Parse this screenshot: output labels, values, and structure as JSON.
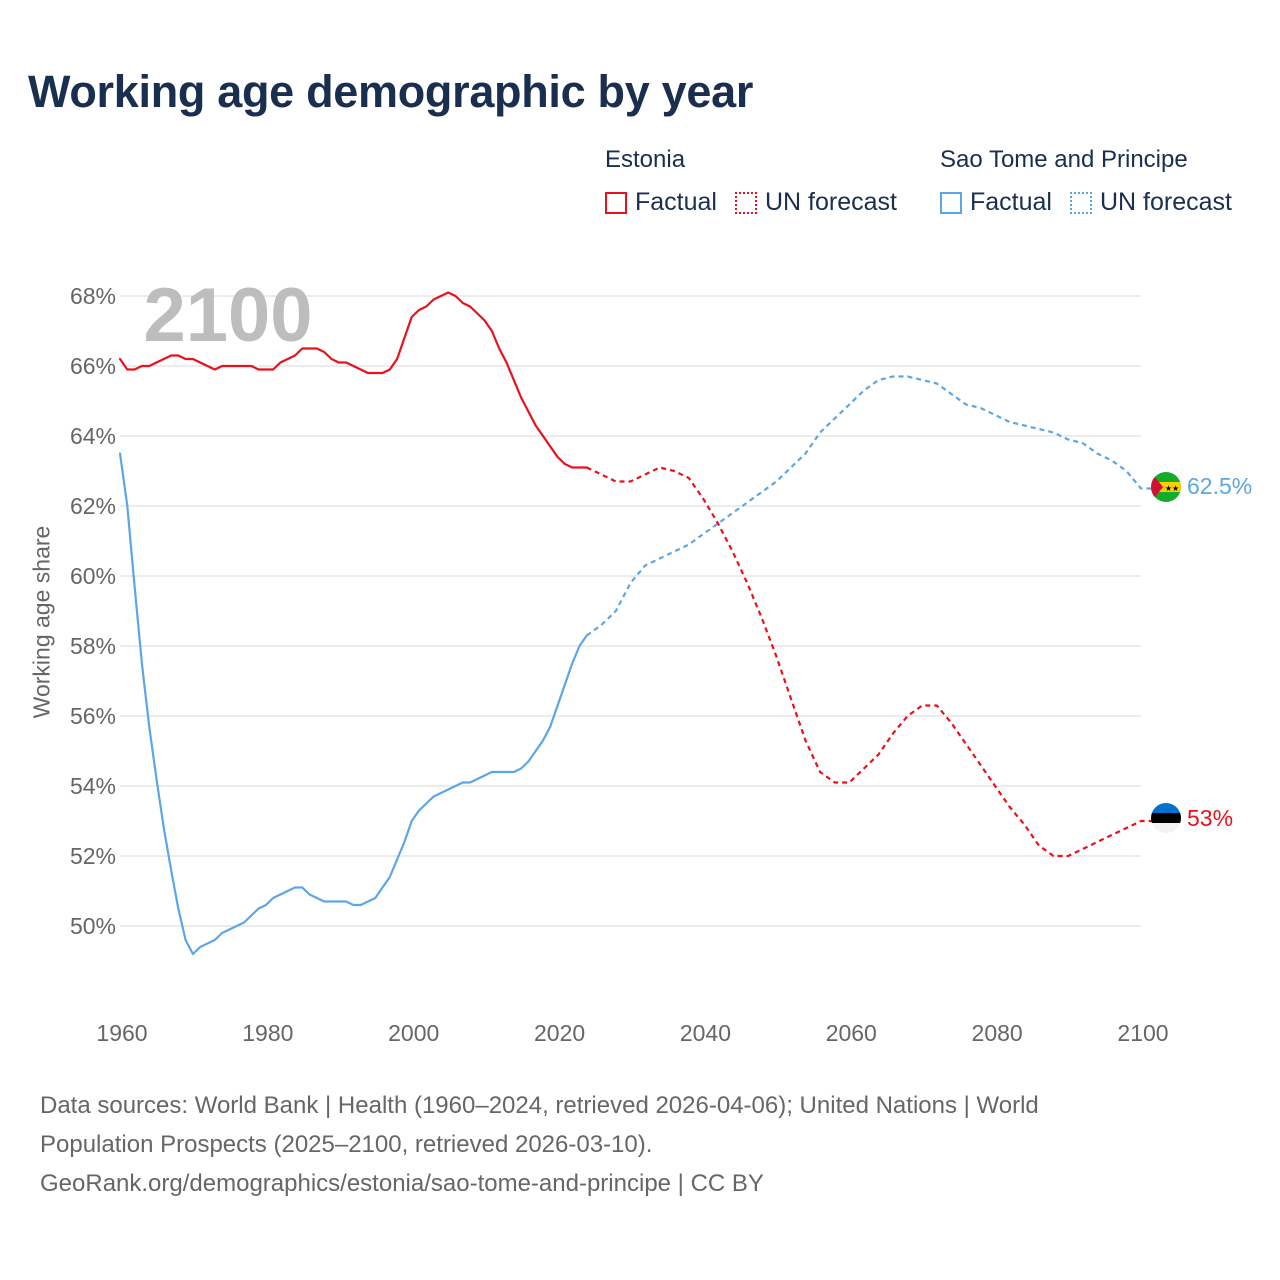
{
  "title": "Working age demographic by year",
  "legend": {
    "groups": [
      {
        "name": "Estonia",
        "factual_label": "Factual",
        "forecast_label": "UN forecast",
        "color": "#e8111c"
      },
      {
        "name": "Sao Tome and Principe",
        "factual_label": "Factual",
        "forecast_label": "UN forecast",
        "color": "#5da6e6"
      }
    ]
  },
  "chart_data": {
    "type": "line",
    "year_watermark": "2100",
    "ylabel": "Working age share",
    "xlim": [
      1960,
      2103
    ],
    "ylim": [
      48,
      69
    ],
    "x_ticks": [
      1960,
      1980,
      2000,
      2020,
      2040,
      2060,
      2080,
      2100
    ],
    "y_ticks": [
      50,
      52,
      54,
      56,
      58,
      60,
      62,
      64,
      66,
      68
    ],
    "y_tick_suffix": "%",
    "forecast_start_year": 2024,
    "series": [
      {
        "name": "Estonia",
        "color": "#e8111c",
        "end_label": "53%",
        "flag": "estonia-flag",
        "points": [
          [
            1960,
            66.2
          ],
          [
            1961,
            65.9
          ],
          [
            1962,
            65.9
          ],
          [
            1963,
            66.0
          ],
          [
            1964,
            66.0
          ],
          [
            1965,
            66.1
          ],
          [
            1966,
            66.2
          ],
          [
            1967,
            66.3
          ],
          [
            1968,
            66.3
          ],
          [
            1969,
            66.2
          ],
          [
            1970,
            66.2
          ],
          [
            1971,
            66.1
          ],
          [
            1972,
            66.0
          ],
          [
            1973,
            65.9
          ],
          [
            1974,
            66.0
          ],
          [
            1975,
            66.0
          ],
          [
            1976,
            66.0
          ],
          [
            1977,
            66.0
          ],
          [
            1978,
            66.0
          ],
          [
            1979,
            65.9
          ],
          [
            1980,
            65.9
          ],
          [
            1981,
            65.9
          ],
          [
            1982,
            66.1
          ],
          [
            1983,
            66.2
          ],
          [
            1984,
            66.3
          ],
          [
            1985,
            66.5
          ],
          [
            1986,
            66.5
          ],
          [
            1987,
            66.5
          ],
          [
            1988,
            66.4
          ],
          [
            1989,
            66.2
          ],
          [
            1990,
            66.1
          ],
          [
            1991,
            66.1
          ],
          [
            1992,
            66.0
          ],
          [
            1993,
            65.9
          ],
          [
            1994,
            65.8
          ],
          [
            1995,
            65.8
          ],
          [
            1996,
            65.8
          ],
          [
            1997,
            65.9
          ],
          [
            1998,
            66.2
          ],
          [
            1999,
            66.8
          ],
          [
            2000,
            67.4
          ],
          [
            2001,
            67.6
          ],
          [
            2002,
            67.7
          ],
          [
            2003,
            67.9
          ],
          [
            2004,
            68.0
          ],
          [
            2005,
            68.1
          ],
          [
            2006,
            68.0
          ],
          [
            2007,
            67.8
          ],
          [
            2008,
            67.7
          ],
          [
            2009,
            67.5
          ],
          [
            2010,
            67.3
          ],
          [
            2011,
            67.0
          ],
          [
            2012,
            66.5
          ],
          [
            2013,
            66.1
          ],
          [
            2014,
            65.6
          ],
          [
            2015,
            65.1
          ],
          [
            2016,
            64.7
          ],
          [
            2017,
            64.3
          ],
          [
            2018,
            64.0
          ],
          [
            2019,
            63.7
          ],
          [
            2020,
            63.4
          ],
          [
            2021,
            63.2
          ],
          [
            2022,
            63.1
          ],
          [
            2023,
            63.1
          ],
          [
            2024,
            63.1
          ],
          [
            2026,
            62.9
          ],
          [
            2028,
            62.7
          ],
          [
            2030,
            62.7
          ],
          [
            2032,
            62.9
          ],
          [
            2034,
            63.1
          ],
          [
            2036,
            63.0
          ],
          [
            2038,
            62.8
          ],
          [
            2040,
            62.2
          ],
          [
            2042,
            61.5
          ],
          [
            2044,
            60.7
          ],
          [
            2046,
            59.8
          ],
          [
            2048,
            58.8
          ],
          [
            2050,
            57.7
          ],
          [
            2052,
            56.5
          ],
          [
            2054,
            55.3
          ],
          [
            2056,
            54.4
          ],
          [
            2058,
            54.1
          ],
          [
            2060,
            54.1
          ],
          [
            2062,
            54.5
          ],
          [
            2064,
            54.9
          ],
          [
            2066,
            55.5
          ],
          [
            2068,
            56.0
          ],
          [
            2070,
            56.3
          ],
          [
            2072,
            56.3
          ],
          [
            2074,
            55.8
          ],
          [
            2076,
            55.2
          ],
          [
            2078,
            54.6
          ],
          [
            2080,
            54.0
          ],
          [
            2082,
            53.4
          ],
          [
            2084,
            52.9
          ],
          [
            2086,
            52.3
          ],
          [
            2088,
            52.0
          ],
          [
            2090,
            52.0
          ],
          [
            2092,
            52.2
          ],
          [
            2094,
            52.4
          ],
          [
            2096,
            52.6
          ],
          [
            2098,
            52.8
          ],
          [
            2100,
            53.0
          ],
          [
            2101.5,
            53.0
          ]
        ]
      },
      {
        "name": "Sao Tome and Principe",
        "color": "#5da6e6",
        "end_label": "62.5%",
        "flag": "sao-tome-flag",
        "points": [
          [
            1960,
            63.5
          ],
          [
            1961,
            62.0
          ],
          [
            1962,
            59.7
          ],
          [
            1963,
            57.5
          ],
          [
            1964,
            55.7
          ],
          [
            1965,
            54.2
          ],
          [
            1966,
            52.8
          ],
          [
            1967,
            51.6
          ],
          [
            1968,
            50.5
          ],
          [
            1969,
            49.6
          ],
          [
            1970,
            49.2
          ],
          [
            1971,
            49.4
          ],
          [
            1972,
            49.5
          ],
          [
            1973,
            49.6
          ],
          [
            1974,
            49.8
          ],
          [
            1975,
            49.9
          ],
          [
            1976,
            50.0
          ],
          [
            1977,
            50.1
          ],
          [
            1978,
            50.3
          ],
          [
            1979,
            50.5
          ],
          [
            1980,
            50.6
          ],
          [
            1981,
            50.8
          ],
          [
            1982,
            50.9
          ],
          [
            1983,
            51.0
          ],
          [
            1984,
            51.1
          ],
          [
            1985,
            51.1
          ],
          [
            1986,
            50.9
          ],
          [
            1987,
            50.8
          ],
          [
            1988,
            50.7
          ],
          [
            1989,
            50.7
          ],
          [
            1990,
            50.7
          ],
          [
            1991,
            50.7
          ],
          [
            1992,
            50.6
          ],
          [
            1993,
            50.6
          ],
          [
            1994,
            50.7
          ],
          [
            1995,
            50.8
          ],
          [
            1996,
            51.1
          ],
          [
            1997,
            51.4
          ],
          [
            1998,
            51.9
          ],
          [
            1999,
            52.4
          ],
          [
            2000,
            53.0
          ],
          [
            2001,
            53.3
          ],
          [
            2002,
            53.5
          ],
          [
            2003,
            53.7
          ],
          [
            2004,
            53.8
          ],
          [
            2005,
            53.9
          ],
          [
            2006,
            54.0
          ],
          [
            2007,
            54.1
          ],
          [
            2008,
            54.1
          ],
          [
            2009,
            54.2
          ],
          [
            2010,
            54.3
          ],
          [
            2011,
            54.4
          ],
          [
            2012,
            54.4
          ],
          [
            2013,
            54.4
          ],
          [
            2014,
            54.4
          ],
          [
            2015,
            54.5
          ],
          [
            2016,
            54.7
          ],
          [
            2017,
            55.0
          ],
          [
            2018,
            55.3
          ],
          [
            2019,
            55.7
          ],
          [
            2020,
            56.3
          ],
          [
            2021,
            56.9
          ],
          [
            2022,
            57.5
          ],
          [
            2023,
            58.0
          ],
          [
            2024,
            58.3
          ],
          [
            2026,
            58.6
          ],
          [
            2028,
            59.0
          ],
          [
            2030,
            59.8
          ],
          [
            2032,
            60.3
          ],
          [
            2034,
            60.5
          ],
          [
            2036,
            60.7
          ],
          [
            2038,
            60.9
          ],
          [
            2040,
            61.2
          ],
          [
            2042,
            61.5
          ],
          [
            2044,
            61.8
          ],
          [
            2046,
            62.1
          ],
          [
            2048,
            62.4
          ],
          [
            2050,
            62.7
          ],
          [
            2052,
            63.1
          ],
          [
            2054,
            63.5
          ],
          [
            2056,
            64.1
          ],
          [
            2058,
            64.5
          ],
          [
            2060,
            64.9
          ],
          [
            2062,
            65.3
          ],
          [
            2064,
            65.6
          ],
          [
            2066,
            65.7
          ],
          [
            2068,
            65.7
          ],
          [
            2070,
            65.6
          ],
          [
            2072,
            65.5
          ],
          [
            2074,
            65.2
          ],
          [
            2076,
            64.9
          ],
          [
            2078,
            64.8
          ],
          [
            2080,
            64.6
          ],
          [
            2082,
            64.4
          ],
          [
            2084,
            64.3
          ],
          [
            2086,
            64.2
          ],
          [
            2088,
            64.1
          ],
          [
            2090,
            63.9
          ],
          [
            2092,
            63.8
          ],
          [
            2094,
            63.5
          ],
          [
            2096,
            63.3
          ],
          [
            2098,
            63.0
          ],
          [
            2100,
            62.5
          ],
          [
            2101.5,
            62.5
          ]
        ]
      }
    ]
  },
  "footer": {
    "line1": "Data sources: World Bank | Health (1960–2024, retrieved 2026-04-06); United Nations | World",
    "line2": "Population Prospects (2025–2100, retrieved 2026-03-10).",
    "line3": "GeoRank.org/demographics/estonia/sao-tome-and-principe | CC BY"
  }
}
